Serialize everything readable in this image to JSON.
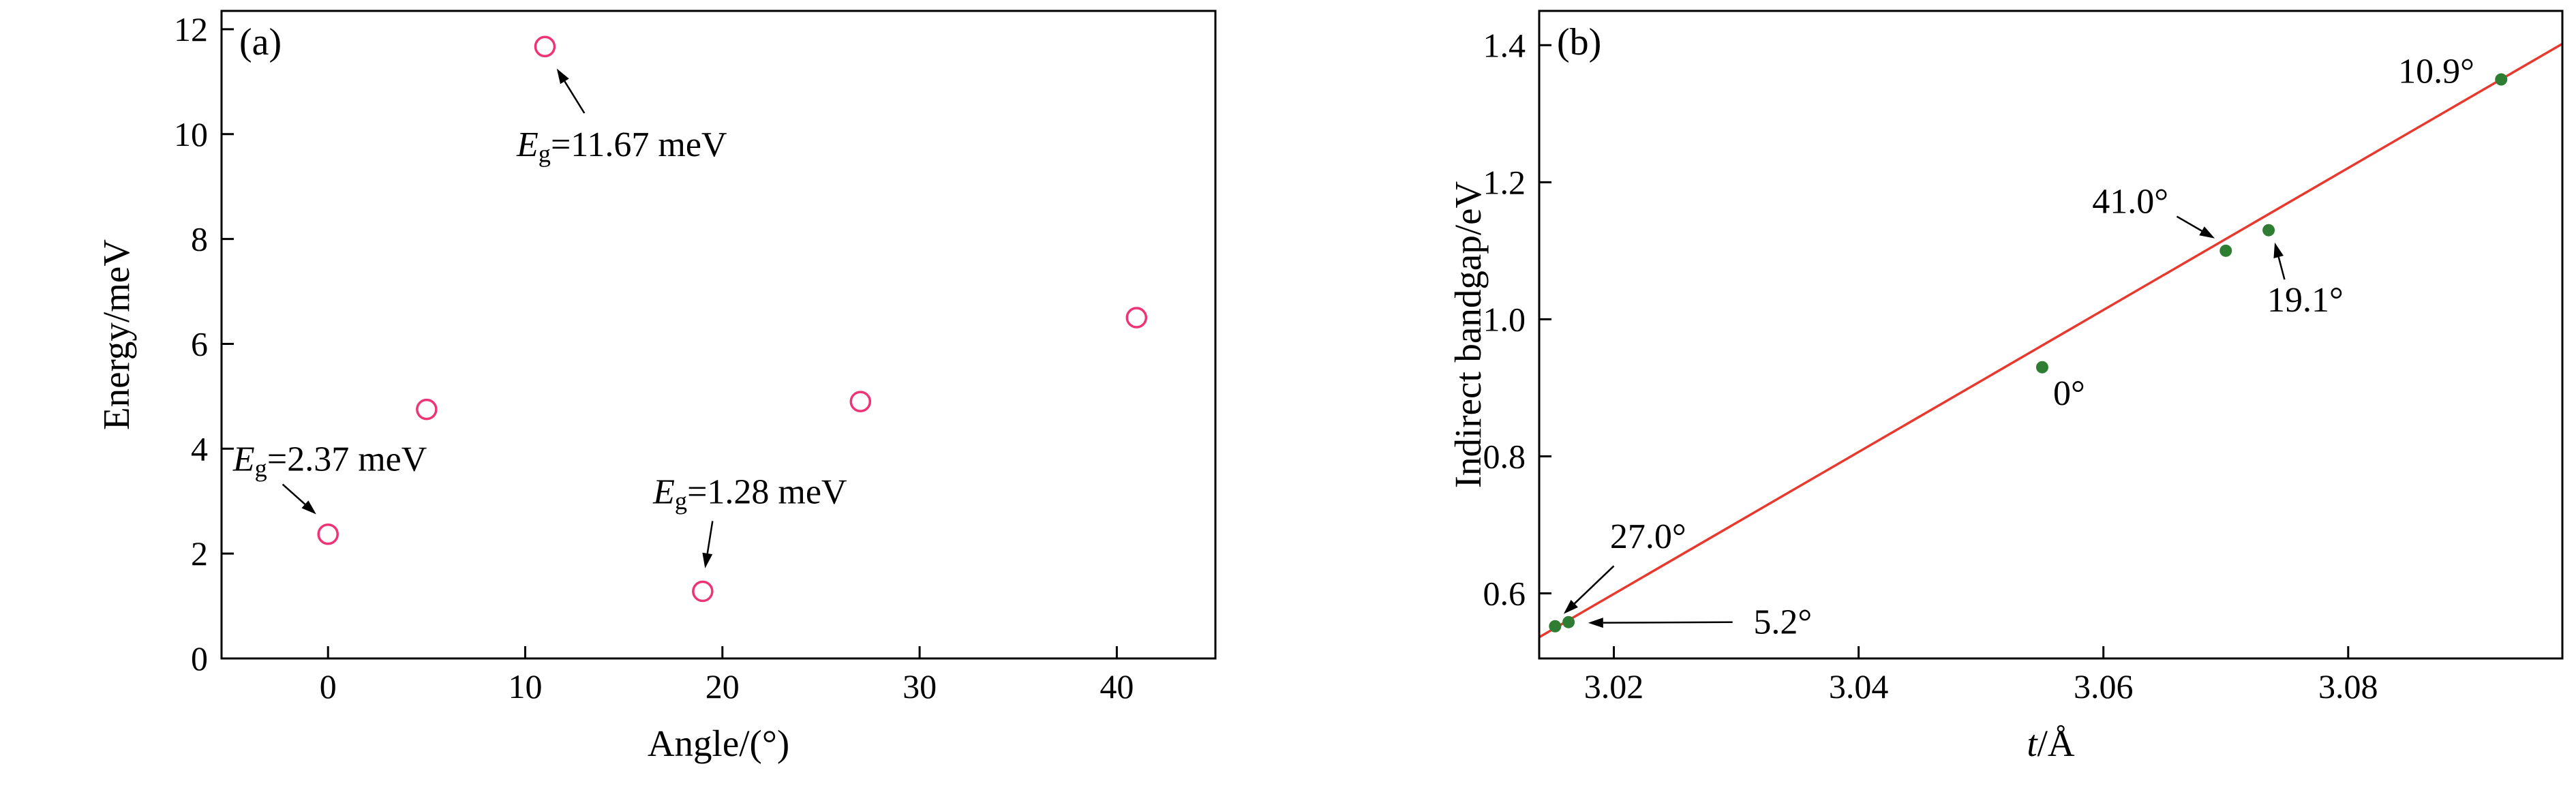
{
  "figure": {
    "background": "#ffffff",
    "frame_color": "#000000",
    "panels": [
      {
        "label": "(a)"
      },
      {
        "label": "(b)"
      }
    ]
  },
  "chart_data": [
    {
      "id": "a",
      "type": "scatter",
      "panel_label": "(a)",
      "xlabel_parts": [
        {
          "t": "Angle/(°)"
        }
      ],
      "ylabel_parts": [
        {
          "t": "Energy/meV"
        }
      ],
      "xlim": [
        -5.4,
        45.0
      ],
      "ylim": [
        0,
        12.35
      ],
      "grid": false,
      "xticks": [
        {
          "v": 0,
          "label": "0"
        },
        {
          "v": 10,
          "label": "10"
        },
        {
          "v": 20,
          "label": "20"
        },
        {
          "v": 30,
          "label": "30"
        },
        {
          "v": 40,
          "label": "40"
        }
      ],
      "yticks": [
        {
          "v": 0,
          "label": "0"
        },
        {
          "v": 2,
          "label": "2"
        },
        {
          "v": 4,
          "label": "4"
        },
        {
          "v": 6,
          "label": "6"
        },
        {
          "v": 8,
          "label": "8"
        },
        {
          "v": 10,
          "label": "10"
        },
        {
          "v": 12,
          "label": "12"
        }
      ],
      "points": [
        {
          "x": 0,
          "y": 2.37,
          "label": "Eg=2.37 meV"
        },
        {
          "x": 5,
          "y": 4.75,
          "label": ""
        },
        {
          "x": 11,
          "y": 11.67,
          "label": "Eg=11.67 meV"
        },
        {
          "x": 19,
          "y": 1.28,
          "label": "Eg=1.28 meV"
        },
        {
          "x": 27,
          "y": 4.9,
          "label": ""
        },
        {
          "x": 41,
          "y": 6.5,
          "label": ""
        }
      ],
      "marker": {
        "type": "open-circle",
        "color": "#ee3377",
        "fill": "#ffffff",
        "radius": 14,
        "stroke_width": 3.5
      },
      "annotations": [
        {
          "parts": [
            {
              "t": "E",
              "style": "italic"
            },
            {
              "t": "g",
              "style": "sub"
            },
            {
              "t": "=11.67 meV"
            }
          ],
          "x": 14.9,
          "y": 9.8,
          "arrow": {
            "x1": 13.0,
            "y1": 10.4,
            "x2": 11.6,
            "y2": 11.25
          }
        },
        {
          "parts": [
            {
              "t": "E",
              "style": "italic"
            },
            {
              "t": "g",
              "style": "sub"
            },
            {
              "t": "=2.37 meV"
            }
          ],
          "x": 0.1,
          "y": 3.8,
          "arrow": {
            "x1": -2.3,
            "y1": 3.32,
            "x2": -0.6,
            "y2": 2.75
          }
        },
        {
          "parts": [
            {
              "t": "E",
              "style": "italic"
            },
            {
              "t": "g",
              "style": "sub"
            },
            {
              "t": "=1.28 meV"
            }
          ],
          "x": 21.4,
          "y": 3.18,
          "arrow": {
            "x1": 19.5,
            "y1": 2.62,
            "x2": 19.12,
            "y2": 1.72
          }
        }
      ]
    },
    {
      "id": "b",
      "type": "scatter",
      "panel_label": "(b)",
      "xlabel_parts": [
        {
          "t": "t",
          "style": "italic"
        },
        {
          "t": "/Å"
        }
      ],
      "ylabel_parts": [
        {
          "t": "Indirect bandgap/eV"
        }
      ],
      "xlim": [
        3.0139,
        3.0975
      ],
      "ylim": [
        0.505,
        1.45
      ],
      "grid": false,
      "xticks": [
        {
          "v": 3.02,
          "label": "3.02"
        },
        {
          "v": 3.04,
          "label": "3.04"
        },
        {
          "v": 3.06,
          "label": "3.06"
        },
        {
          "v": 3.08,
          "label": "3.08"
        }
      ],
      "yticks": [
        {
          "v": 0.6,
          "label": "0.6"
        },
        {
          "v": 0.8,
          "label": "0.8"
        },
        {
          "v": 1.0,
          "label": "1.0"
        },
        {
          "v": 1.2,
          "label": "1.2"
        },
        {
          "v": 1.4,
          "label": "1.4"
        }
      ],
      "points": [
        {
          "x": 3.0152,
          "y": 0.552,
          "label": "27.0°"
        },
        {
          "x": 3.0163,
          "y": 0.558,
          "label": "5.2°"
        },
        {
          "x": 3.055,
          "y": 0.93,
          "label": "0°"
        },
        {
          "x": 3.07,
          "y": 1.1,
          "label": "41.0°"
        },
        {
          "x": 3.0735,
          "y": 1.13,
          "label": "19.1°"
        },
        {
          "x": 3.0925,
          "y": 1.35,
          "label": "10.9°"
        }
      ],
      "marker": {
        "type": "filled-circle",
        "color": "#2e7d32",
        "fill": "#2e7d32",
        "radius": 9,
        "stroke_width": 0
      },
      "fit_line": {
        "x1": 3.0139,
        "y1": 0.536,
        "x2": 3.0975,
        "y2": 1.402,
        "color": "#e8392f",
        "width": 3.5
      },
      "annotations": [
        {
          "parts": [
            {
              "t": "27.0°"
            }
          ],
          "x": 3.0228,
          "y": 0.683,
          "arrow": {
            "x1": 3.02,
            "y1": 0.64,
            "x2": 3.0159,
            "y2": 0.57
          }
        },
        {
          "parts": [
            {
              "t": "5.2°"
            }
          ],
          "x": 3.0338,
          "y": 0.558,
          "arrow": {
            "x1": 3.0297,
            "y1": 0.558,
            "x2": 3.0179,
            "y2": 0.557
          }
        },
        {
          "parts": [
            {
              "t": "0°"
            }
          ],
          "x": 3.0572,
          "y": 0.892,
          "arrow": null
        },
        {
          "parts": [
            {
              "t": "41.0°"
            }
          ],
          "x": 3.0622,
          "y": 1.172,
          "arrow": {
            "x1": 3.066,
            "y1": 1.15,
            "x2": 3.0691,
            "y2": 1.118
          }
        },
        {
          "parts": [
            {
              "t": "19.1°"
            }
          ],
          "x": 3.0765,
          "y": 1.028,
          "arrow": {
            "x1": 3.0748,
            "y1": 1.058,
            "x2": 3.074,
            "y2": 1.112
          }
        },
        {
          "parts": [
            {
              "t": "10.9°"
            }
          ],
          "x": 3.0872,
          "y": 1.362,
          "arrow": null
        }
      ]
    }
  ]
}
